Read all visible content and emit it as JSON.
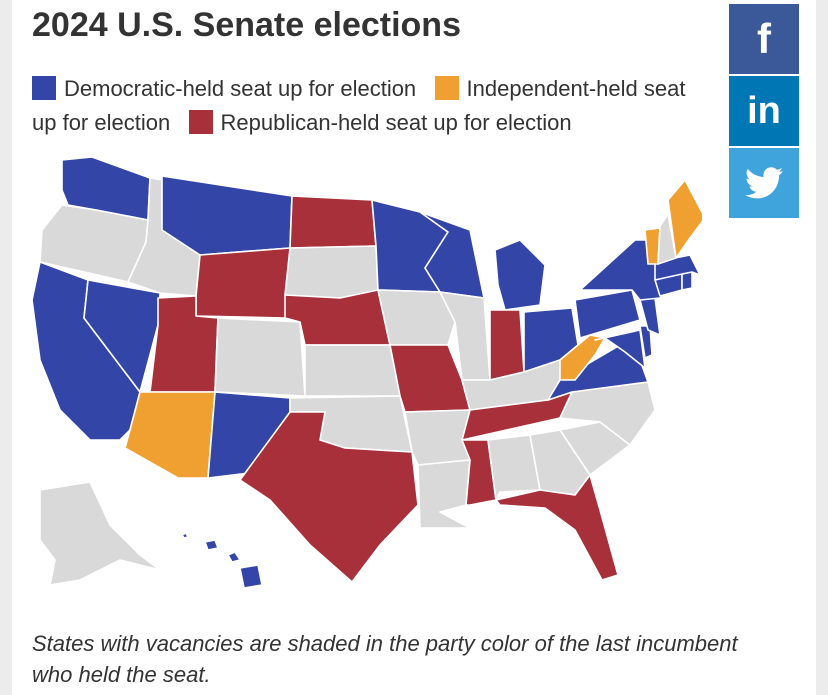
{
  "title": "2024 U.S. Senate elections",
  "legend": [
    {
      "label": "Democratic-held seat up for election",
      "color": "#3445a8"
    },
    {
      "label": "Independent-held seat up for election",
      "color": "#f0a030"
    },
    {
      "label": "Republican-held seat up for election",
      "color": "#a8303b"
    }
  ],
  "caption": "States with vacancies are shaded in the party color of the last incumbent who held the seat.",
  "share": {
    "facebook": "f",
    "linkedin": "in",
    "twitter": "twitter-icon"
  },
  "colors": {
    "democratic": "#3445a8",
    "independent": "#f0a030",
    "republican": "#a8303b",
    "none": "#d9d9d9",
    "border": "#ffffff"
  },
  "states": {
    "democratic": [
      "WA",
      "CA",
      "NV",
      "MT",
      "NM",
      "MN",
      "WI",
      "MI",
      "OH",
      "PA",
      "VA",
      "MD",
      "DE",
      "NJ",
      "NY",
      "CT",
      "RI",
      "MA",
      "HI"
    ],
    "independent": [
      "AZ",
      "WV",
      "ME",
      "VT"
    ],
    "republican": [
      "UT",
      "WY",
      "ND",
      "NE",
      "TX",
      "MO",
      "IN",
      "TN",
      "MS",
      "FL"
    ],
    "none": [
      "OR",
      "ID",
      "CO",
      "SD",
      "KS",
      "OK",
      "IA",
      "IL",
      "AR",
      "LA",
      "AL",
      "GA",
      "SC",
      "NC",
      "KY",
      "NH",
      "AK"
    ]
  }
}
